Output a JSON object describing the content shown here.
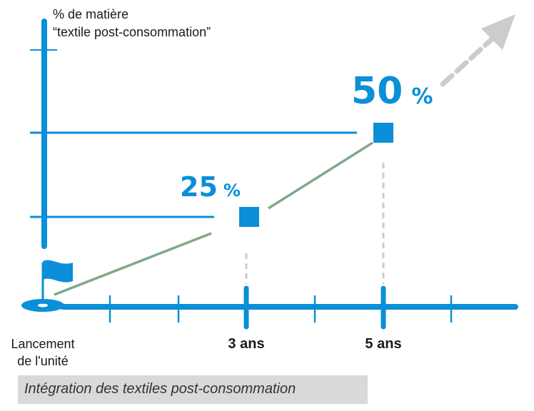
{
  "caption": "Intégration des textiles post-consommation",
  "colors": {
    "axis": "#0a8fd8",
    "marker": "#0a8fd8",
    "trend": "#7fa88a",
    "projection_arrow": "#cccccc",
    "guide_dashed": "#cccccc",
    "caption_bg": "#d9d9d9"
  },
  "chart_data": {
    "type": "line",
    "ylabel_line1": "% de matière",
    "ylabel_line2": "“textile post-consommation”",
    "x_start_label_line1": "Lancement",
    "x_start_label_line2": "de l'unité",
    "x_start_icon": "flag-icon",
    "categories": [
      "3 ans",
      "5 ans"
    ],
    "points": [
      {
        "x_years": 0,
        "y_percent": 0
      },
      {
        "x_years": 3,
        "y_percent": 25,
        "label_value": "25",
        "label_unit": "%"
      },
      {
        "x_years": 5,
        "y_percent": 50,
        "label_value": "50",
        "label_unit": "%"
      }
    ],
    "projection": "upward trend continues beyond 5 ans"
  }
}
